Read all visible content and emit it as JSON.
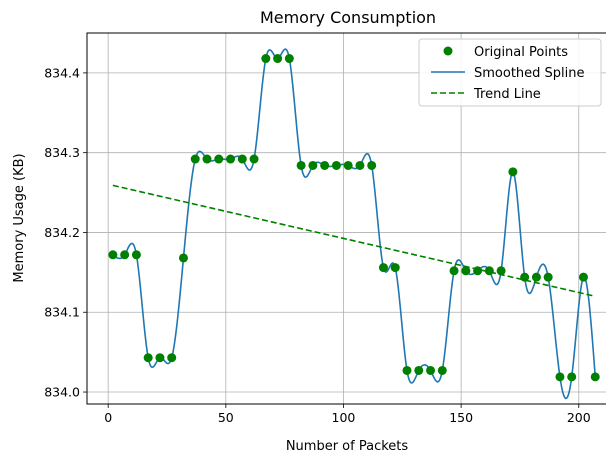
{
  "chart_data": {
    "type": "line",
    "title": "Memory Consumption",
    "xlabel": "Number of Packets",
    "ylabel": "Memory Usage (KB)",
    "xlim": [
      -9,
      212
    ],
    "ylim": [
      833.985,
      834.45
    ],
    "xticks": [
      0,
      50,
      100,
      150,
      200
    ],
    "yticks": [
      834.0,
      834.1,
      834.2,
      834.3,
      834.4
    ],
    "ytick_labels": [
      "834.0",
      "834.1",
      "834.2",
      "834.3",
      "834.4"
    ],
    "grid": true,
    "legend_position": "top-right",
    "series": [
      {
        "name": "Original Points",
        "kind": "scatter",
        "color": "#008000",
        "x": [
          2,
          7,
          12,
          17,
          22,
          27,
          32,
          37,
          42,
          47,
          52,
          57,
          62,
          67,
          72,
          77,
          82,
          87,
          92,
          97,
          102,
          107,
          112,
          117,
          122,
          127,
          132,
          137,
          142,
          147,
          152,
          157,
          162,
          167,
          172,
          177,
          182,
          187,
          192,
          197,
          202,
          207
        ],
        "y": [
          834.172,
          834.172,
          834.172,
          834.043,
          834.043,
          834.043,
          834.168,
          834.292,
          834.292,
          834.292,
          834.292,
          834.292,
          834.292,
          834.418,
          834.418,
          834.418,
          834.284,
          834.284,
          834.284,
          834.284,
          834.284,
          834.284,
          834.284,
          834.156,
          834.156,
          834.027,
          834.027,
          834.027,
          834.027,
          834.152,
          834.152,
          834.152,
          834.152,
          834.152,
          834.276,
          834.144,
          834.144,
          834.144,
          834.019,
          834.019,
          834.144,
          834.019
        ]
      },
      {
        "name": "Smoothed Spline",
        "kind": "spline",
        "color": "#1f77b4"
      },
      {
        "name": "Trend Line",
        "kind": "line",
        "color": "#008000",
        "x": [
          2,
          207
        ],
        "y": [
          834.259,
          834.12
        ]
      }
    ]
  }
}
